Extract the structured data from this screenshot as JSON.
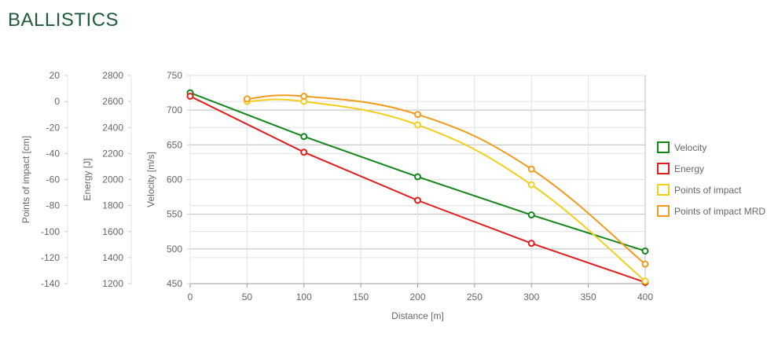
{
  "page": {
    "title": "BALLISTICS"
  },
  "colors": {
    "velocity": "#13861a",
    "energy": "#e11d1d",
    "impact": "#f2cf1c",
    "impact_mrd": "#f29b1c",
    "grid": "#e2e2e2",
    "grid_major": "#bdbdbd",
    "tick": "#666666"
  },
  "chart_data": {
    "type": "line",
    "xlabel": "Distance [m]",
    "x_ticks": [
      0,
      50,
      100,
      150,
      200,
      250,
      300,
      350,
      400
    ],
    "xlim": [
      0,
      400
    ],
    "axes": {
      "velocity": {
        "label": "Velocity [m/s]",
        "min": 450,
        "max": 750,
        "ticks": [
          750,
          700,
          650,
          600,
          550,
          500,
          450
        ]
      },
      "energy": {
        "label": "Energy [J]",
        "min": 1200,
        "max": 2800,
        "ticks": [
          2800,
          2600,
          2400,
          2200,
          2000,
          1800,
          1600,
          1400,
          1200
        ]
      },
      "impact": {
        "label": "Points of impact [cm]",
        "min": -140,
        "max": 20,
        "ticks": [
          20,
          0,
          -20,
          -40,
          -60,
          -80,
          -100,
          -120,
          -140
        ]
      }
    },
    "series": [
      {
        "key": "velocity",
        "name": "Velocity",
        "axis": "velocity",
        "smooth": false,
        "x": [
          0,
          100,
          200,
          300,
          400
        ],
        "y": [
          725,
          662,
          604,
          549,
          497
        ]
      },
      {
        "key": "energy",
        "name": "Energy",
        "axis": "energy",
        "smooth": false,
        "x": [
          0,
          100,
          200,
          300,
          400
        ],
        "y": [
          2640,
          2210,
          1840,
          1510,
          1210
        ]
      },
      {
        "key": "impact",
        "name": "Points of impact",
        "axis": "impact",
        "smooth": true,
        "x": [
          50,
          100,
          200,
          300,
          400
        ],
        "y": [
          0,
          0,
          -18,
          -64,
          -138
        ]
      },
      {
        "key": "impact_mrd",
        "name": "Points of impact MRD",
        "axis": "impact",
        "smooth": true,
        "x": [
          50,
          100,
          200,
          300,
          400
        ],
        "y": [
          2,
          4,
          -10,
          -52,
          -125
        ]
      }
    ],
    "legend_position": "right"
  }
}
